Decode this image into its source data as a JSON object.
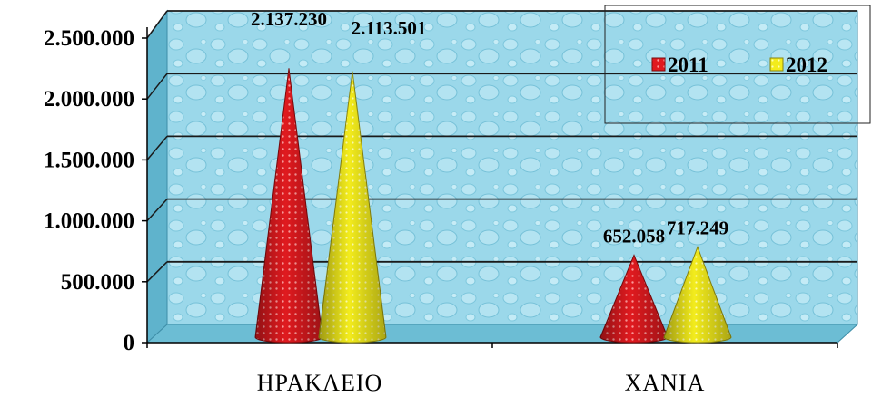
{
  "chart_data": {
    "type": "bar",
    "style": "3d-cone",
    "categories": [
      "ΗΡΑΚΛΕΙΟ",
      "ΧΑΝΙΑ"
    ],
    "series": [
      {
        "name": "2011",
        "values": [
          2137230,
          652058
        ],
        "labels": [
          "2.137.230",
          "652.058"
        ],
        "color": "#e4161c"
      },
      {
        "name": "2012",
        "values": [
          2113501,
          717249
        ],
        "labels": [
          "2.113.501",
          "717.249"
        ],
        "color": "#f5ef1e"
      }
    ],
    "ylim": [
      0,
      2500000
    ],
    "yticks": [
      0,
      500000,
      1000000,
      1500000,
      2000000,
      2500000
    ],
    "ytick_labels": [
      "0",
      "500.000",
      "1.000.000",
      "1.500.000",
      "2.000.000",
      "2.500.000"
    ],
    "grid": true,
    "legend": "top-right",
    "background": "#8fd3e8"
  }
}
